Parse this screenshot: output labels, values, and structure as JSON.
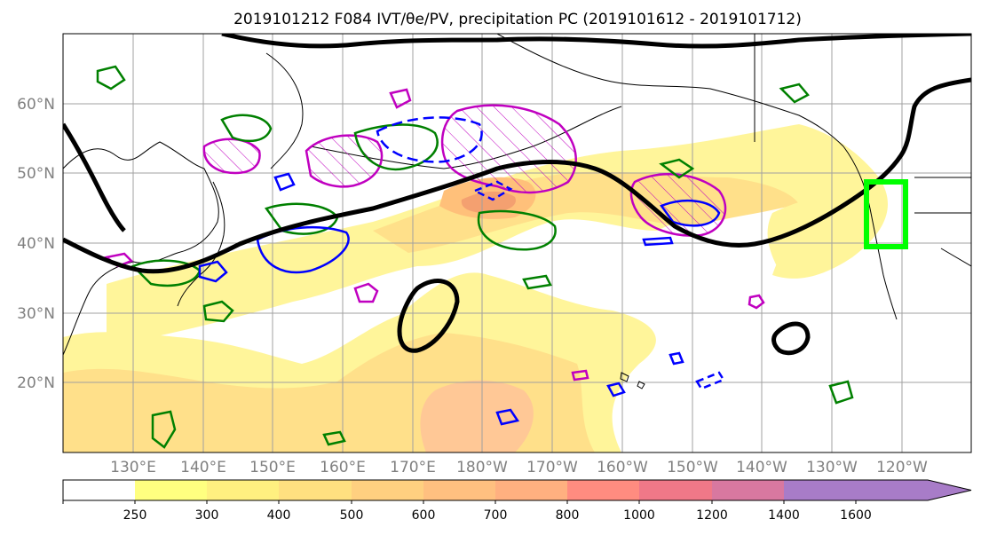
{
  "title": "2019101212 F084 IVT/θe/PV, precipitation PC (2019101612 - 2019101712)",
  "map": {
    "lat_labels": [
      "60°N",
      "50°N",
      "40°N",
      "30°N",
      "20°N"
    ],
    "lon_labels": [
      "130°E",
      "140°E",
      "150°E",
      "160°E",
      "170°E",
      "180°W",
      "170°W",
      "160°W",
      "150°W",
      "140°W",
      "130°W",
      "120°W"
    ],
    "highlight_box_color": "#00ff00",
    "contour_colors": {
      "theta_e": "#000000",
      "pv": "#c000c0",
      "ivt_green": "#008000",
      "ivt_blue": "#0000ff"
    }
  },
  "colorbar": {
    "tick_labels": [
      "250",
      "300",
      "400",
      "500",
      "600",
      "700",
      "800",
      "1000",
      "1200",
      "1400",
      "1600"
    ],
    "colors": [
      "#ffffff",
      "#ffff80",
      "#fff080",
      "#ffe080",
      "#ffd080",
      "#ffc080",
      "#ffb080",
      "#ff8c80",
      "#f07888",
      "#d878a0",
      "#a87cc8"
    ]
  }
}
